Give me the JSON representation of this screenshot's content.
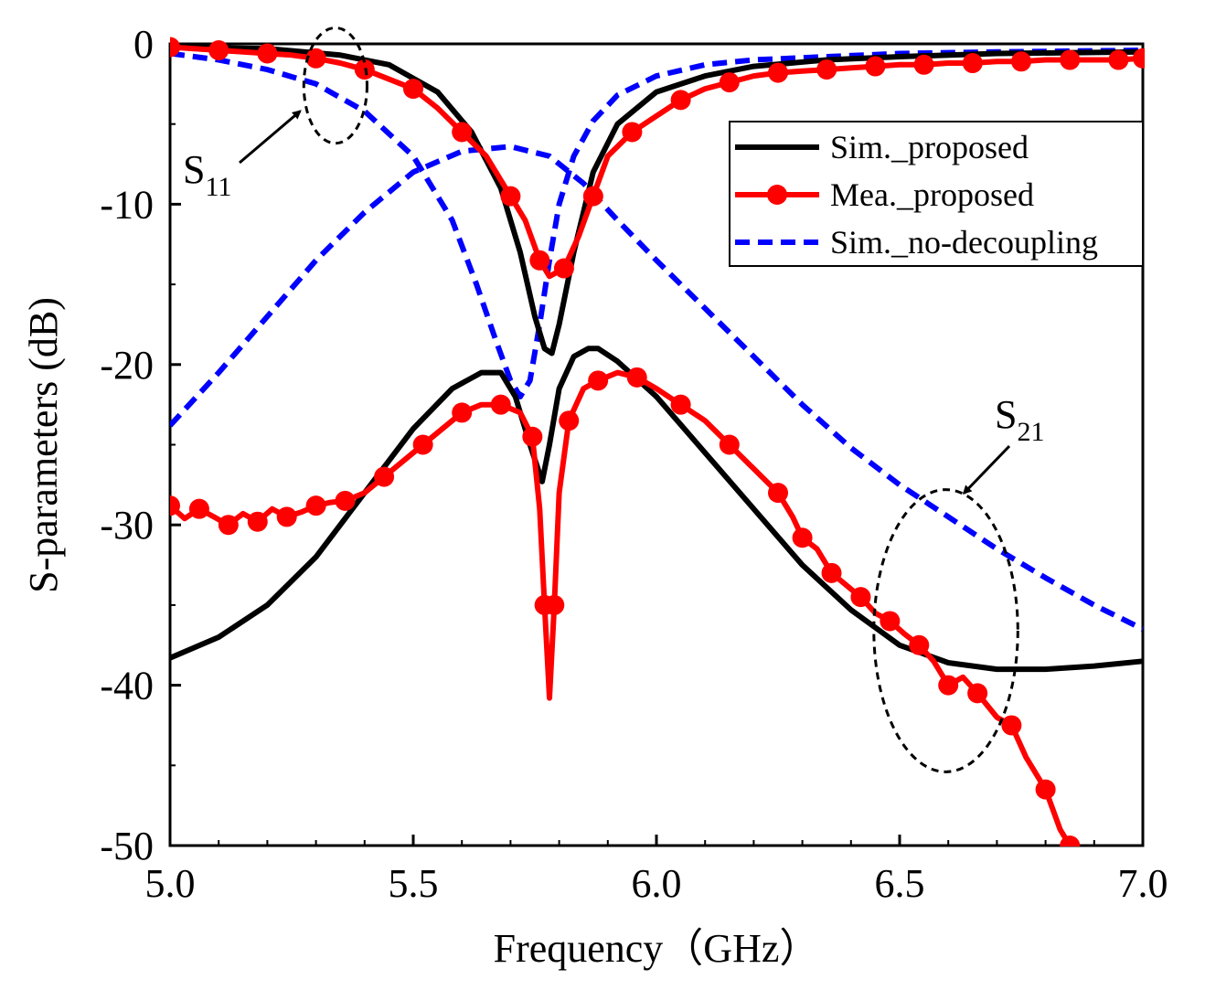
{
  "chart_data": {
    "type": "line",
    "xlabel": "Frequency（GHz）",
    "ylabel": "S-parameters (dB)",
    "xlim": [
      5.0,
      7.0
    ],
    "ylim": [
      -50,
      0
    ],
    "x_ticks": [
      "5.0",
      "5.5",
      "6.0",
      "6.5",
      "7.0"
    ],
    "x_tick_values": [
      5.0,
      5.5,
      6.0,
      6.5,
      7.0
    ],
    "y_ticks": [
      "0",
      "-10",
      "-20",
      "-30",
      "-40",
      "-50"
    ],
    "y_tick_values": [
      0,
      -10,
      -20,
      -30,
      -40,
      -50
    ],
    "legend_position": "top-right",
    "series": [
      {
        "name": "Sim._proposed",
        "color": "#000000",
        "style": "solid",
        "group": "S11",
        "x": [
          5.0,
          5.2,
          5.35,
          5.45,
          5.55,
          5.62,
          5.68,
          5.72,
          5.75,
          5.77,
          5.785,
          5.8,
          5.83,
          5.87,
          5.92,
          6.0,
          6.1,
          6.2,
          6.35,
          6.5,
          6.7,
          7.0
        ],
        "y": [
          -0.2,
          -0.3,
          -0.7,
          -1.3,
          -3.0,
          -5.5,
          -9.0,
          -13.0,
          -17.0,
          -19.0,
          -19.3,
          -17.5,
          -13.0,
          -8.0,
          -5.0,
          -3.0,
          -2.0,
          -1.4,
          -1.0,
          -0.8,
          -0.6,
          -0.5
        ]
      },
      {
        "name": "Sim._proposed",
        "color": "#000000",
        "style": "solid",
        "group": "S21",
        "x": [
          5.0,
          5.1,
          5.2,
          5.3,
          5.4,
          5.5,
          5.58,
          5.64,
          5.68,
          5.71,
          5.74,
          5.765,
          5.78,
          5.8,
          5.83,
          5.86,
          5.88,
          5.92,
          6.0,
          6.1,
          6.2,
          6.3,
          6.4,
          6.5,
          6.6,
          6.7,
          6.8,
          6.9,
          7.0
        ],
        "y": [
          -38.3,
          -37.0,
          -35.0,
          -32.0,
          -28.0,
          -24.0,
          -21.5,
          -20.5,
          -20.5,
          -22.0,
          -25.0,
          -27.3,
          -25.0,
          -21.5,
          -19.5,
          -19.0,
          -19.0,
          -19.8,
          -22.0,
          -25.5,
          -29.0,
          -32.5,
          -35.3,
          -37.5,
          -38.6,
          -39.0,
          -39.0,
          -38.8,
          -38.5
        ]
      },
      {
        "name": "Mea._proposed",
        "color": "#ff0000",
        "style": "marker",
        "group": "S11",
        "x": [
          5.0,
          5.05,
          5.1,
          5.15,
          5.2,
          5.25,
          5.3,
          5.35,
          5.4,
          5.45,
          5.5,
          5.55,
          5.6,
          5.65,
          5.7,
          5.73,
          5.76,
          5.78,
          5.81,
          5.84,
          5.87,
          5.9,
          5.95,
          6.0,
          6.05,
          6.1,
          6.15,
          6.2,
          6.25,
          6.3,
          6.35,
          6.4,
          6.45,
          6.5,
          6.55,
          6.6,
          6.65,
          6.7,
          6.75,
          6.8,
          6.85,
          6.9,
          6.95,
          7.0
        ],
        "y": [
          -0.2,
          -0.3,
          -0.4,
          -0.5,
          -0.6,
          -0.7,
          -0.9,
          -1.2,
          -1.6,
          -2.2,
          -2.8,
          -4.0,
          -5.5,
          -7.0,
          -9.5,
          -11.0,
          -13.5,
          -14.5,
          -14.0,
          -12.0,
          -9.5,
          -7.0,
          -5.5,
          -4.5,
          -3.5,
          -2.8,
          -2.4,
          -2.0,
          -1.8,
          -1.7,
          -1.6,
          -1.5,
          -1.4,
          -1.3,
          -1.3,
          -1.2,
          -1.2,
          -1.1,
          -1.1,
          -1.0,
          -1.0,
          -1.0,
          -1.0,
          -0.9
        ]
      },
      {
        "name": "Mea._proposed",
        "color": "#ff0000",
        "style": "marker",
        "group": "S21",
        "x": [
          5.0,
          5.03,
          5.06,
          5.09,
          5.12,
          5.15,
          5.18,
          5.21,
          5.24,
          5.27,
          5.3,
          5.33,
          5.36,
          5.4,
          5.44,
          5.48,
          5.52,
          5.56,
          5.6,
          5.64,
          5.68,
          5.72,
          5.745,
          5.76,
          5.77,
          5.78,
          5.79,
          5.8,
          5.82,
          5.85,
          5.88,
          5.92,
          5.96,
          6.0,
          6.05,
          6.1,
          6.15,
          6.2,
          6.25,
          6.28,
          6.3,
          6.33,
          6.36,
          6.4,
          6.42,
          6.45,
          6.48,
          6.51,
          6.54,
          6.57,
          6.6,
          6.63,
          6.66,
          6.7,
          6.73,
          6.76,
          6.8,
          6.83,
          6.85
        ],
        "y": [
          -28.8,
          -29.6,
          -29.0,
          -29.5,
          -30.0,
          -29.3,
          -29.8,
          -29.0,
          -29.5,
          -29.2,
          -28.8,
          -28.6,
          -28.5,
          -28.0,
          -27.0,
          -26.0,
          -25.0,
          -24.0,
          -23.0,
          -22.5,
          -22.5,
          -23.0,
          -24.5,
          -29.0,
          -35.0,
          -40.8,
          -35.0,
          -28.0,
          -23.5,
          -21.5,
          -21.0,
          -20.5,
          -20.8,
          -21.5,
          -22.5,
          -23.5,
          -25.0,
          -26.5,
          -28.0,
          -29.5,
          -30.8,
          -31.5,
          -33.0,
          -34.0,
          -34.5,
          -35.5,
          -36.0,
          -36.8,
          -37.5,
          -38.5,
          -40.0,
          -39.5,
          -40.5,
          -42.0,
          -42.5,
          -44.5,
          -46.5,
          -49.0,
          -50.0
        ]
      },
      {
        "name": "Sim._no-decoupling",
        "color": "#0000ff",
        "style": "dashed",
        "group": "S11",
        "x": [
          5.0,
          5.1,
          5.2,
          5.3,
          5.4,
          5.5,
          5.58,
          5.63,
          5.67,
          5.7,
          5.72,
          5.74,
          5.76,
          5.78,
          5.8,
          5.83,
          5.87,
          5.92,
          6.0,
          6.1,
          6.2,
          6.35,
          6.5,
          6.7,
          7.0
        ],
        "y": [
          -0.6,
          -1.0,
          -1.6,
          -2.5,
          -4.2,
          -7.0,
          -11.0,
          -15.0,
          -18.5,
          -21.0,
          -22.0,
          -21.0,
          -17.5,
          -13.5,
          -10.0,
          -7.0,
          -4.8,
          -3.2,
          -2.0,
          -1.3,
          -1.0,
          -0.8,
          -0.6,
          -0.5,
          -0.4
        ]
      },
      {
        "name": "Sim._no-decoupling",
        "color": "#0000ff",
        "style": "dashed",
        "group": "S21",
        "x": [
          5.0,
          5.1,
          5.2,
          5.3,
          5.4,
          5.5,
          5.6,
          5.7,
          5.78,
          5.85,
          5.92,
          6.0,
          6.1,
          6.2,
          6.3,
          6.4,
          6.5,
          6.6,
          6.7,
          6.8,
          6.9,
          7.0
        ],
        "y": [
          -23.8,
          -20.5,
          -17.0,
          -13.5,
          -10.5,
          -8.0,
          -6.7,
          -6.4,
          -7.0,
          -8.7,
          -11.0,
          -13.5,
          -16.5,
          -19.5,
          -22.5,
          -25.2,
          -27.5,
          -29.5,
          -31.5,
          -33.3,
          -35.0,
          -36.5
        ]
      }
    ],
    "legend": [
      {
        "label": "Sim._proposed",
        "color": "#000000",
        "style": "solid"
      },
      {
        "label": "Mea._proposed",
        "color": "#ff0000",
        "style": "marker"
      },
      {
        "label": "Sim._no-decoupling",
        "color": "#0000ff",
        "style": "dashed"
      }
    ],
    "annotations": [
      {
        "label": "S",
        "subscript": "11",
        "center": [
          5.34,
          -2.6
        ],
        "radii": [
          0.065,
          3.6
        ]
      },
      {
        "label": "S",
        "subscript": "21",
        "center": [
          6.595,
          -36.6
        ],
        "radii": [
          0.148,
          8.8
        ]
      }
    ]
  }
}
